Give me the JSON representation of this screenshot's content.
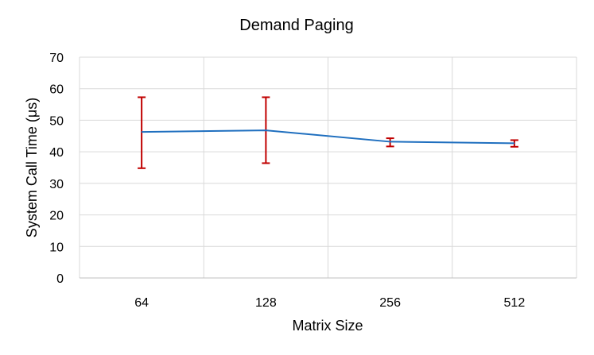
{
  "chart_data": {
    "type": "line",
    "title": "Demand Paging",
    "xlabel": "Matrix Size",
    "ylabel": "System Call Time (μs)",
    "categories": [
      "64",
      "128",
      "256",
      "512"
    ],
    "ylim": [
      0,
      70
    ],
    "yticks": [
      0,
      10,
      20,
      30,
      40,
      50,
      60,
      70
    ],
    "grid": true,
    "legend": "none",
    "series": [
      {
        "values": [
          46.3,
          46.8,
          43.2,
          42.7
        ],
        "error_low": [
          34.8,
          36.4,
          41.7,
          41.6
        ],
        "error_high": [
          57.3,
          57.3,
          44.3,
          43.7
        ],
        "line_color": "#1f6fbf",
        "error_color": "#c00000"
      }
    ]
  }
}
